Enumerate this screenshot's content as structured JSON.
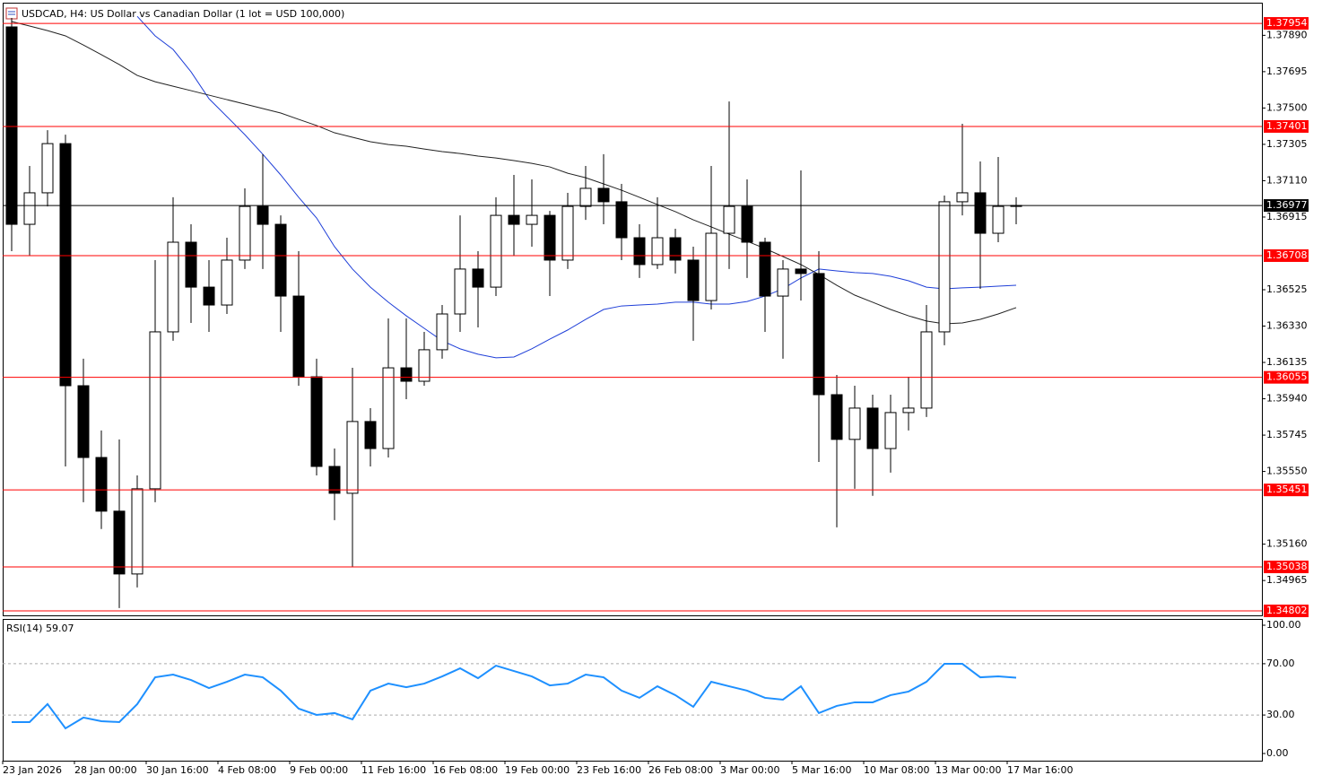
{
  "chart_data": [
    {
      "type": "candlestick",
      "title": "USDCAD, H4:  US Dollar vs Canadian Dollar (1 lot = USD 100,000)",
      "categories": [
        "23 Jan 2026",
        null,
        null,
        null,
        "28 Jan 00:00",
        null,
        null,
        null,
        "30 Jan 16:00",
        null,
        null,
        null,
        "4 Feb 08:00",
        null,
        null,
        null,
        "9 Feb 00:00",
        null,
        null,
        null,
        "11 Feb 16:00",
        null,
        null,
        null,
        "16 Feb 08:00",
        null,
        null,
        null,
        "19 Feb 00:00",
        null,
        null,
        null,
        "23 Feb 16:00",
        null,
        null,
        null,
        "26 Feb 08:00",
        null,
        null,
        null,
        "3 Mar 00:00",
        null,
        null,
        null,
        "5 Mar 16:00",
        null,
        null,
        null,
        "10 Mar 08:00",
        null,
        null,
        null,
        "13 Mar 00:00",
        null,
        null,
        null,
        "17 Mar 16:00"
      ],
      "ohlc": [
        [
          1.37935,
          1.37983,
          1.36732,
          1.36876
        ],
        [
          1.36876,
          1.37189,
          1.36708,
          1.37045
        ],
        [
          1.37045,
          1.37381,
          1.36972,
          1.37309
        ],
        [
          1.37309,
          1.37357,
          1.35577,
          1.3601
        ],
        [
          1.3601,
          1.36155,
          1.35385,
          1.35625
        ],
        [
          1.35625,
          1.3577,
          1.35241,
          1.35337
        ],
        [
          1.35337,
          1.35722,
          1.34817,
          1.35
        ],
        [
          1.35,
          1.35529,
          1.34928,
          1.35457
        ],
        [
          1.35457,
          1.36684,
          1.35385,
          1.36299
        ],
        [
          1.36299,
          1.37021,
          1.36251,
          1.3678
        ],
        [
          1.3678,
          1.36876,
          1.36347,
          1.36539
        ],
        [
          1.36539,
          1.36684,
          1.36299,
          1.36443
        ],
        [
          1.36443,
          1.36804,
          1.36395,
          1.36684
        ],
        [
          1.36684,
          1.37069,
          1.36636,
          1.36972
        ],
        [
          1.36972,
          1.37252,
          1.36636,
          1.36876
        ],
        [
          1.36876,
          1.36924,
          1.36299,
          1.36491
        ],
        [
          1.36491,
          1.36732,
          1.3601,
          1.36058
        ],
        [
          1.36058,
          1.36155,
          1.35529,
          1.35577
        ],
        [
          1.35577,
          1.35673,
          1.35289,
          1.35433
        ],
        [
          1.35433,
          1.36106,
          1.35038,
          1.35818
        ],
        [
          1.35818,
          1.3589,
          1.35577,
          1.35673
        ],
        [
          1.35673,
          1.36371,
          1.35625,
          1.36106
        ],
        [
          1.36106,
          1.36371,
          1.35938,
          1.36034
        ],
        [
          1.36034,
          1.36299,
          1.3601,
          1.36203
        ],
        [
          1.36203,
          1.36443,
          1.36155,
          1.36395
        ],
        [
          1.36395,
          1.36924,
          1.36299,
          1.36636
        ],
        [
          1.36636,
          1.36732,
          1.36323,
          1.36539
        ],
        [
          1.36539,
          1.37021,
          1.36491,
          1.36924
        ],
        [
          1.36924,
          1.37141,
          1.36708,
          1.36876
        ],
        [
          1.36876,
          1.37117,
          1.36756,
          1.36924
        ],
        [
          1.36924,
          1.36948,
          1.36491,
          1.36684
        ],
        [
          1.36684,
          1.37045,
          1.36636,
          1.36972
        ],
        [
          1.36972,
          1.37189,
          1.369,
          1.37069
        ],
        [
          1.37069,
          1.37252,
          1.36876,
          1.36997
        ],
        [
          1.36997,
          1.37093,
          1.36684,
          1.36804
        ],
        [
          1.36804,
          1.36876,
          1.36588,
          1.3666
        ],
        [
          1.3666,
          1.37021,
          1.36636,
          1.36804
        ],
        [
          1.36804,
          1.36852,
          1.36612,
          1.36684
        ],
        [
          1.36684,
          1.36756,
          1.36251,
          1.36467
        ],
        [
          1.36467,
          1.37189,
          1.36419,
          1.36828
        ],
        [
          1.36828,
          1.37535,
          1.36636,
          1.36972
        ],
        [
          1.36972,
          1.37117,
          1.36588,
          1.3678
        ],
        [
          1.3678,
          1.36804,
          1.36299,
          1.36491
        ],
        [
          1.36491,
          1.36684,
          1.36155,
          1.36636
        ],
        [
          1.36636,
          1.37165,
          1.36467,
          1.36612
        ],
        [
          1.36612,
          1.36732,
          1.35601,
          1.35962
        ],
        [
          1.35962,
          1.36068,
          1.3525,
          1.35722
        ],
        [
          1.35722,
          1.3601,
          1.35457,
          1.3589
        ],
        [
          1.3589,
          1.35962,
          1.35419,
          1.35673
        ],
        [
          1.35673,
          1.35962,
          1.35544,
          1.35866
        ],
        [
          1.35866,
          1.36058,
          1.3577,
          1.3589
        ],
        [
          1.3589,
          1.36443,
          1.35842,
          1.36299
        ],
        [
          1.36299,
          1.3703,
          1.36227,
          1.36997
        ],
        [
          1.36997,
          1.37415,
          1.36924,
          1.37045
        ],
        [
          1.37045,
          1.37213,
          1.3653,
          1.36828
        ],
        [
          1.36828,
          1.37237,
          1.3678,
          1.36972
        ],
        [
          1.36972,
          1.37021,
          1.36876,
          1.36977
        ]
      ],
      "series": [
        {
          "color": "#1f3fd8",
          "values": [
            null,
            null,
            null,
            null,
            null,
            null,
            null,
            1.37992,
            1.37887,
            1.37814,
            1.37694,
            1.3755,
            1.37454,
            1.37357,
            1.37252,
            1.37141,
            1.37021,
            1.3691,
            1.36756,
            1.36636,
            1.36539,
            1.36458,
            1.36385,
            1.36318,
            1.36251,
            1.36208,
            1.36179,
            1.3616,
            1.36164,
            1.36208,
            1.3626,
            1.36309,
            1.36366,
            1.36419,
            1.36438,
            1.36443,
            1.36448,
            1.36458,
            1.36458,
            1.36448,
            1.36448,
            1.36462,
            1.36491,
            1.3653,
            1.36588,
            1.36636,
            1.36626,
            1.36617,
            1.36612,
            1.36597,
            1.36573,
            1.36539,
            1.3653,
            1.36535,
            1.36539,
            1.36544,
            1.36549
          ]
        },
        {
          "color": "#222222",
          "values": [
            1.37964,
            1.3794,
            1.37915,
            1.37887,
            1.37838,
            1.37786,
            1.37733,
            1.37675,
            1.37641,
            1.37617,
            1.37593,
            1.37569,
            1.37545,
            1.37521,
            1.37497,
            1.37473,
            1.37439,
            1.37406,
            1.37367,
            1.37343,
            1.37319,
            1.37304,
            1.37295,
            1.3728,
            1.37266,
            1.37256,
            1.37242,
            1.37232,
            1.37218,
            1.37203,
            1.37184,
            1.3715,
            1.37126,
            1.37093,
            1.37059,
            1.37021,
            1.36982,
            1.36944,
            1.369,
            1.36862,
            1.36823,
            1.36785,
            1.36746,
            1.36703,
            1.3666,
            1.36607,
            1.36549,
            1.36496,
            1.36458,
            1.36419,
            1.36385,
            1.36357,
            1.36342,
            1.36347,
            1.36366,
            1.36395,
            1.36429
          ]
        }
      ],
      "levels": [
        1.37954,
        1.37401,
        1.36708,
        1.36055,
        1.35451,
        1.35038,
        1.34802
      ],
      "level_color": "#ff0000",
      "current_price": 1.36977,
      "ylim": [
        1.34778,
        1.38065
      ],
      "yticks": [
        {
          "value": 1.3789,
          "label": "1.37890"
        },
        1.37695,
        {
          "value": 1.375,
          "label": "1.37500"
        },
        1.37305,
        {
          "value": 1.3711,
          "label": "1.37110"
        },
        1.36915,
        1.36525,
        {
          "value": 1.3633,
          "label": "1.36330"
        },
        1.36135,
        {
          "value": 1.3594,
          "label": "1.35940"
        },
        1.35745,
        {
          "value": 1.3555,
          "label": "1.35550"
        },
        {
          "value": 1.3516,
          "label": "1.35160"
        },
        1.34965
      ]
    },
    {
      "type": "line",
      "title": "RSI(14)",
      "color": "#1e90ff",
      "values": [
        24.5,
        24.5,
        38.5,
        19.6,
        28.0,
        25.2,
        24.5,
        38.5,
        59.4,
        61.5,
        57.3,
        51.0,
        55.9,
        61.5,
        59.4,
        49.0,
        35.0,
        30.1,
        31.5,
        26.6,
        49.0,
        54.5,
        51.7,
        54.5,
        60.1,
        66.4,
        58.7,
        68.5,
        64.3,
        60.1,
        53.1,
        54.5,
        61.5,
        59.4,
        49.0,
        43.4,
        52.4,
        45.5,
        36.4,
        55.9,
        52.4,
        49.0,
        43.4,
        42.0,
        52.4,
        31.5,
        37.1,
        39.9,
        39.9,
        45.5,
        48.3,
        55.9,
        69.9,
        69.9,
        59.4,
        60.1,
        59.07
      ],
      "levels": [
        70,
        30
      ],
      "ylim": [
        -5.6,
        104.9
      ],
      "yticks": [
        {
          "value": 100,
          "label": "100.00"
        },
        {
          "value": 70,
          "label": "70.00"
        },
        {
          "value": 30,
          "label": "30.00"
        },
        {
          "value": 0,
          "label": "0.00"
        }
      ]
    }
  ]
}
